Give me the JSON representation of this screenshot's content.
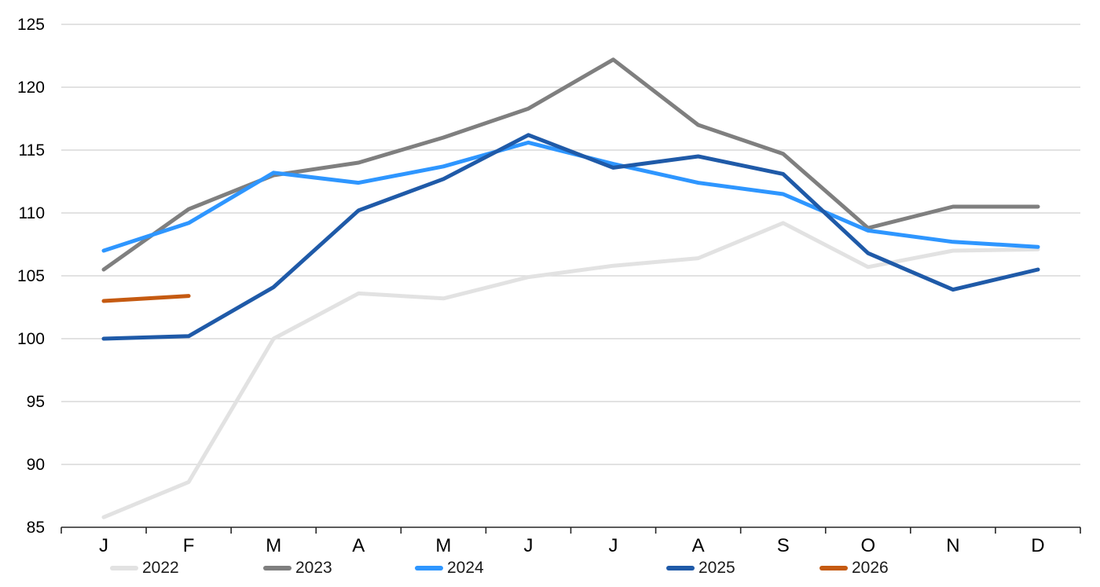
{
  "chart_data": {
    "type": "line",
    "title": "",
    "xlabel": "",
    "ylabel": "",
    "categories": [
      "J",
      "F",
      "M",
      "A",
      "M",
      "J",
      "J",
      "A",
      "S",
      "O",
      "N",
      "D"
    ],
    "y_ticks": [
      85,
      90,
      95,
      100,
      105,
      110,
      115,
      120,
      125
    ],
    "ylim": [
      85,
      125
    ],
    "grid": "horizontal",
    "legend_position": "bottom",
    "series": [
      {
        "name": "2022",
        "color": "#e2e2e2",
        "values": [
          85.8,
          88.6,
          100.0,
          103.6,
          103.2,
          104.9,
          105.8,
          106.4,
          109.2,
          105.7,
          107.0,
          107.1
        ]
      },
      {
        "name": "2023",
        "color": "#7f7f7f",
        "values": [
          105.5,
          110.3,
          113.0,
          114.0,
          116.0,
          118.3,
          122.2,
          117.0,
          114.7,
          108.8,
          110.5,
          110.5
        ]
      },
      {
        "name": "2024",
        "color": "#2e96ff",
        "values": [
          107.0,
          109.2,
          113.2,
          112.4,
          113.7,
          115.6,
          113.9,
          112.4,
          111.5,
          108.6,
          107.7,
          107.3
        ]
      },
      {
        "name": "2025",
        "color": "#1f5aa8",
        "values": [
          100.0,
          100.2,
          104.1,
          110.2,
          112.7,
          116.2,
          113.6,
          114.5,
          113.1,
          106.8,
          103.9,
          105.5
        ]
      },
      {
        "name": "2026",
        "color": "#c55a11",
        "values": [
          103.0,
          103.4,
          null,
          null,
          null,
          null,
          null,
          null,
          null,
          null,
          null,
          null
        ]
      }
    ]
  },
  "colors": {
    "gridline": "#d9d9d9",
    "axis": "#262626",
    "label": "#000000",
    "background": "#ffffff"
  }
}
